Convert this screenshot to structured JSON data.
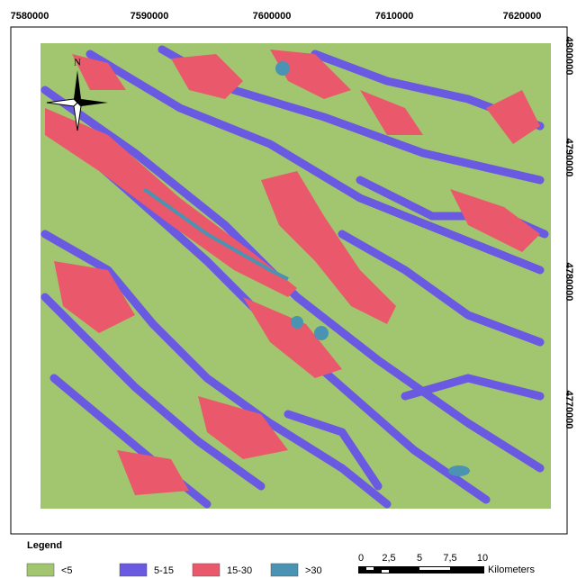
{
  "map": {
    "x_labels": [
      "7580000",
      "7590000",
      "7600000",
      "7610000",
      "7620000"
    ],
    "y_labels": [
      "4800000",
      "4790000",
      "4780000",
      "4770000"
    ],
    "north_label": "N",
    "legend": {
      "title": "Legend",
      "items": [
        {
          "label": "<5",
          "color": "#a2c66f"
        },
        {
          "label": "5-15",
          "color": "#6a5ae2"
        },
        {
          "label": "15-30",
          "color": "#e9596b"
        },
        {
          "label": ">30",
          "color": "#4a93b3"
        }
      ]
    },
    "scale_bar": {
      "labels": [
        "0",
        "2,5",
        "5",
        "7,5",
        "10"
      ],
      "unit": "Kilometers"
    }
  }
}
